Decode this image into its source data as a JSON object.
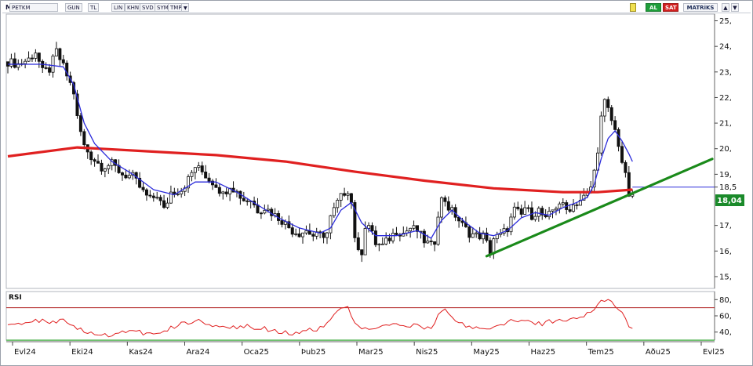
{
  "toolbar": {
    "m_label": "M",
    "symbol": "PETKM",
    "buttons": [
      "GUN",
      "TL",
      "LIN",
      "KHN",
      "SVD",
      "SYM",
      "TMP"
    ],
    "dropdown_icon": "triangle-down-icon",
    "al_label": "AL",
    "sat_label": "SAT",
    "brand_label": "MATRiKS",
    "up_icon": "arrow-up-icon",
    "down_icon": "arrow-down-icon"
  },
  "colors": {
    "candle": "#111111",
    "ma_short": "#2b2bdb",
    "ma_long": "#e02020",
    "trendline": "#1a8a1a",
    "rsi": "#e02020",
    "rsi_upper": "#b02020",
    "rsi_lower": "#1a9a1a",
    "price_tag": "#1a8a2a"
  },
  "chart_data": [
    {
      "type": "candlestick",
      "symbol": "PETKM",
      "y_axis_labels": [
        "25,",
        "24,",
        "23,",
        "22,",
        "21,",
        "20,",
        "19,",
        "18,5",
        "17,",
        "16,",
        "15,"
      ],
      "ylim": [
        14.6,
        25.2
      ],
      "x_axis_labels": [
        "Evl24",
        "Eki24",
        "Kas24",
        "Ara24",
        "Oca25",
        "Þub25",
        "Mar25",
        "Nis25",
        "May25",
        "Haz25",
        "Tem25",
        "Aðu25",
        "Evl25"
      ],
      "last_price_label": "18,04",
      "horizontal_line": 18.5,
      "close_path": [
        [
          0,
          23.4
        ],
        [
          3,
          23.3
        ],
        [
          6,
          23.5
        ],
        [
          8,
          23.8
        ],
        [
          10,
          23.0
        ],
        [
          12,
          23.1
        ],
        [
          14,
          23.8
        ],
        [
          16,
          23.2
        ],
        [
          19,
          22.2
        ],
        [
          20,
          21.2
        ],
        [
          22,
          20.1
        ],
        [
          24,
          19.7
        ],
        [
          27,
          19.3
        ],
        [
          30,
          19.4
        ],
        [
          33,
          19.0
        ],
        [
          36,
          18.9
        ],
        [
          39,
          18.3
        ],
        [
          41,
          18.0
        ],
        [
          43,
          18.2
        ],
        [
          45,
          17.6
        ],
        [
          47,
          18.3
        ],
        [
          50,
          18.4
        ],
        [
          52,
          18.8
        ],
        [
          54,
          19.3
        ],
        [
          56,
          19.1
        ],
        [
          58,
          18.8
        ],
        [
          60,
          18.6
        ],
        [
          62,
          18.2
        ],
        [
          64,
          18.6
        ],
        [
          66,
          18.3
        ],
        [
          68,
          18.0
        ],
        [
          70,
          18.0
        ],
        [
          72,
          17.6
        ],
        [
          74,
          17.7
        ],
        [
          76,
          17.5
        ],
        [
          79,
          17.2
        ],
        [
          82,
          16.8
        ],
        [
          84,
          16.7
        ],
        [
          86,
          16.8
        ],
        [
          88,
          16.6
        ],
        [
          90,
          16.6
        ],
        [
          92,
          16.7
        ],
        [
          93,
          17.3
        ],
        [
          95,
          17.9
        ],
        [
          97,
          18.3
        ],
        [
          98,
          18.4
        ],
        [
          99,
          17.9
        ],
        [
          100,
          16.6
        ],
        [
          101,
          15.9
        ],
        [
          102,
          16.0
        ],
        [
          103,
          17.0
        ],
        [
          104,
          17.0
        ],
        [
          106,
          16.3
        ],
        [
          108,
          16.2
        ],
        [
          110,
          16.5
        ],
        [
          112,
          16.8
        ],
        [
          114,
          16.7
        ],
        [
          116,
          16.9
        ],
        [
          118,
          16.8
        ],
        [
          120,
          16.4
        ],
        [
          122,
          16.2
        ],
        [
          123,
          16.4
        ],
        [
          124,
          17.5
        ],
        [
          125,
          18.0
        ],
        [
          126,
          18.0
        ],
        [
          127,
          17.7
        ],
        [
          129,
          17.4
        ],
        [
          131,
          17.0
        ],
        [
          133,
          16.7
        ],
        [
          135,
          16.6
        ],
        [
          137,
          16.6
        ],
        [
          138,
          16.3
        ],
        [
          139,
          16.0
        ],
        [
          140,
          16.5
        ],
        [
          142,
          16.6
        ],
        [
          144,
          16.9
        ],
        [
          146,
          17.6
        ],
        [
          148,
          17.4
        ],
        [
          149,
          17.7
        ],
        [
          151,
          17.4
        ],
        [
          153,
          17.6
        ],
        [
          155,
          17.2
        ],
        [
          157,
          17.6
        ],
        [
          159,
          17.9
        ],
        [
          161,
          17.6
        ],
        [
          163,
          17.8
        ],
        [
          165,
          18.0
        ],
        [
          167,
          18.2
        ],
        [
          168,
          18.5
        ],
        [
          169,
          19.1
        ],
        [
          170,
          20.0
        ],
        [
          171,
          21.2
        ],
        [
          172,
          21.8
        ],
        [
          173,
          21.5
        ],
        [
          174,
          21.1
        ],
        [
          175,
          20.7
        ],
        [
          176,
          20.2
        ],
        [
          177,
          19.5
        ],
        [
          178,
          18.9
        ],
        [
          179,
          18.2
        ],
        [
          180,
          18.04
        ]
      ],
      "ma_short_path": [
        [
          0,
          23.3
        ],
        [
          10,
          23.3
        ],
        [
          16,
          23.2
        ],
        [
          19,
          22.5
        ],
        [
          22,
          21.0
        ],
        [
          25,
          20.2
        ],
        [
          30,
          19.5
        ],
        [
          36,
          19.0
        ],
        [
          42,
          18.4
        ],
        [
          48,
          18.2
        ],
        [
          54,
          18.7
        ],
        [
          60,
          18.7
        ],
        [
          66,
          18.3
        ],
        [
          72,
          17.8
        ],
        [
          78,
          17.3
        ],
        [
          84,
          16.9
        ],
        [
          90,
          16.7
        ],
        [
          93,
          16.9
        ],
        [
          96,
          17.6
        ],
        [
          99,
          17.9
        ],
        [
          102,
          17.1
        ],
        [
          106,
          16.6
        ],
        [
          112,
          16.6
        ],
        [
          118,
          16.8
        ],
        [
          122,
          16.5
        ],
        [
          125,
          17.2
        ],
        [
          128,
          17.6
        ],
        [
          132,
          17.1
        ],
        [
          136,
          16.7
        ],
        [
          140,
          16.6
        ],
        [
          144,
          16.8
        ],
        [
          148,
          17.3
        ],
        [
          152,
          17.5
        ],
        [
          156,
          17.4
        ],
        [
          160,
          17.7
        ],
        [
          164,
          17.9
        ],
        [
          167,
          18.1
        ],
        [
          169,
          18.6
        ],
        [
          171,
          19.6
        ],
        [
          173,
          20.4
        ],
        [
          175,
          20.7
        ],
        [
          177,
          20.3
        ],
        [
          179,
          19.8
        ],
        [
          180,
          19.5
        ]
      ],
      "ma_long_path": [
        [
          0,
          19.7
        ],
        [
          20,
          20.05
        ],
        [
          40,
          19.9
        ],
        [
          60,
          19.75
        ],
        [
          80,
          19.5
        ],
        [
          100,
          19.1
        ],
        [
          120,
          18.75
        ],
        [
          140,
          18.45
        ],
        [
          160,
          18.3
        ],
        [
          170,
          18.3
        ],
        [
          180,
          18.4
        ]
      ],
      "trendline": [
        [
          138,
          15.8
        ],
        [
          203,
          19.6
        ]
      ],
      "bar_index_range": [
        0,
        203
      ]
    },
    {
      "type": "line",
      "title": "RSI",
      "y_axis_labels": [
        "80,",
        "60,",
        "40,"
      ],
      "ylim": [
        32,
        88
      ],
      "upper_band": 70,
      "lower_band": 30,
      "series": [
        {
          "name": "RSI",
          "points": [
            [
              0,
              52
            ],
            [
              4,
              50
            ],
            [
              8,
              55
            ],
            [
              12,
              52
            ],
            [
              16,
              55
            ],
            [
              19,
              48
            ],
            [
              22,
              40
            ],
            [
              25,
              38
            ],
            [
              28,
              36
            ],
            [
              32,
              40
            ],
            [
              36,
              41
            ],
            [
              40,
              38
            ],
            [
              44,
              41
            ],
            [
              48,
              47
            ],
            [
              52,
              52
            ],
            [
              56,
              54
            ],
            [
              58,
              50
            ],
            [
              62,
              47
            ],
            [
              66,
              45
            ],
            [
              70,
              47
            ],
            [
              74,
              44
            ],
            [
              78,
              41
            ],
            [
              82,
              39
            ],
            [
              86,
              42
            ],
            [
              90,
              44
            ],
            [
              93,
              56
            ],
            [
              96,
              68
            ],
            [
              98,
              70
            ],
            [
              100,
              50
            ],
            [
              102,
              42
            ],
            [
              106,
              45
            ],
            [
              110,
              50
            ],
            [
              114,
              47
            ],
            [
              118,
              48
            ],
            [
              122,
              45
            ],
            [
              124,
              60
            ],
            [
              126,
              66
            ],
            [
              128,
              56
            ],
            [
              132,
              47
            ],
            [
              136,
              45
            ],
            [
              138,
              42
            ],
            [
              142,
              50
            ],
            [
              146,
              54
            ],
            [
              150,
              52
            ],
            [
              154,
              50
            ],
            [
              158,
              55
            ],
            [
              162,
              57
            ],
            [
              166,
              60
            ],
            [
              168,
              64
            ],
            [
              170,
              74
            ],
            [
              172,
              80
            ],
            [
              173,
              82
            ],
            [
              174,
              79
            ],
            [
              176,
              68
            ],
            [
              178,
              56
            ],
            [
              179,
              48
            ],
            [
              180,
              47
            ]
          ]
        }
      ]
    }
  ]
}
